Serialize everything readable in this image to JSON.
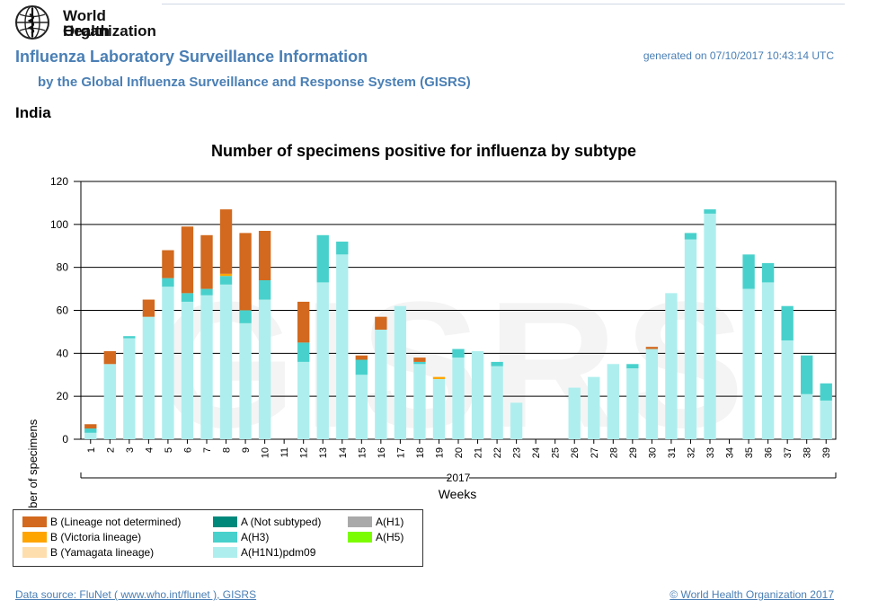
{
  "header": {
    "org_line1": "World Health",
    "org_line2": "Organization",
    "title": "Influenza Laboratory Surveillance Information",
    "subtitle": "by the Global Influenza Surveillance and Response System (GISRS)",
    "generated": "generated on 07/10/2017 10:43:14 UTC",
    "country": "India"
  },
  "watermark": "GISRS",
  "colors": {
    "b_not_determined": "#d2691e",
    "b_victoria": "#ffa500",
    "b_yamagata": "#ffdead",
    "a_not_subtyped": "#00897b",
    "a_h3": "#48d1cc",
    "a_h1n1pdm09": "#afeeee",
    "a_h1": "#a9a9a9",
    "a_h5": "#7cfc00"
  },
  "chart_data": {
    "type": "bar",
    "stacked": true,
    "title": "Number of specimens positive for influenza by subtype",
    "xlabel": "Weeks",
    "ylabel": "Number of specimens",
    "year_label": "2017",
    "ylim": [
      0,
      120
    ],
    "yticks": [
      0,
      20,
      40,
      60,
      80,
      100,
      120
    ],
    "grid": true,
    "categories": [
      "1",
      "2",
      "3",
      "4",
      "5",
      "6",
      "7",
      "8",
      "9",
      "10",
      "11",
      "12",
      "13",
      "14",
      "15",
      "16",
      "17",
      "18",
      "19",
      "20",
      "21",
      "22",
      "23",
      "24",
      "25",
      "26",
      "27",
      "28",
      "29",
      "30",
      "31",
      "32",
      "33",
      "34",
      "35",
      "36",
      "37",
      "38",
      "39"
    ],
    "series": [
      {
        "name": "A(H1N1)pdm09",
        "color_key": "a_h1n1pdm09",
        "values": [
          3,
          35,
          47,
          57,
          71,
          64,
          67,
          72,
          54,
          65,
          0,
          36,
          73,
          86,
          30,
          51,
          62,
          35,
          28,
          38,
          41,
          34,
          17,
          0,
          0,
          24,
          29,
          35,
          33,
          42,
          68,
          93,
          105,
          0,
          70,
          73,
          46,
          21,
          18
        ]
      },
      {
        "name": "A(H3)",
        "color_key": "a_h3",
        "values": [
          2,
          0,
          1,
          0,
          4,
          4,
          3,
          4,
          6,
          9,
          0,
          9,
          22,
          6,
          7,
          0,
          0,
          1,
          0,
          4,
          0,
          2,
          0,
          0,
          0,
          0,
          0,
          0,
          2,
          0,
          0,
          3,
          2,
          0,
          16,
          9,
          16,
          18,
          8
        ]
      },
      {
        "name": "B (Victoria lineage)",
        "color_key": "b_victoria",
        "values": [
          0,
          0,
          0,
          0,
          0,
          0,
          0,
          1,
          0,
          0,
          0,
          0,
          0,
          0,
          0,
          0,
          0,
          0,
          1,
          0,
          0,
          0,
          0,
          0,
          0,
          0,
          0,
          0,
          0,
          0,
          0,
          0,
          0,
          0,
          0,
          0,
          0,
          0,
          0
        ]
      },
      {
        "name": "B (Lineage not determined)",
        "color_key": "b_not_determined",
        "values": [
          2,
          6,
          0,
          8,
          13,
          31,
          25,
          30,
          36,
          23,
          0,
          19,
          0,
          0,
          2,
          6,
          0,
          2,
          0,
          0,
          0,
          0,
          0,
          0,
          0,
          0,
          0,
          0,
          0,
          1,
          0,
          0,
          0,
          0,
          0,
          0,
          0,
          0,
          0
        ]
      }
    ]
  },
  "legend": [
    {
      "label": "B (Lineage not determined)",
      "color_key": "b_not_determined"
    },
    {
      "label": "B (Victoria lineage)",
      "color_key": "b_victoria"
    },
    {
      "label": "B (Yamagata lineage)",
      "color_key": "b_yamagata"
    },
    {
      "label": "A (Not subtyped)",
      "color_key": "a_not_subtyped"
    },
    {
      "label": "A(H3)",
      "color_key": "a_h3"
    },
    {
      "label": "A(H1N1)pdm09",
      "color_key": "a_h1n1pdm09"
    },
    {
      "label": "A(H1)",
      "color_key": "a_h1"
    },
    {
      "label": "A(H5)",
      "color_key": "a_h5"
    }
  ],
  "footer": {
    "source": "Data source: FluNet ( www.who.int/flunet ), GISRS",
    "copyright": "© World Health Organization 2017"
  }
}
